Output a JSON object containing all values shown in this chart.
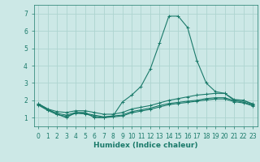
{
  "xlabel": "Humidex (Indice chaleur)",
  "ylabel": "",
  "background_color": "#cce8e6",
  "grid_color": "#aed4d0",
  "line_color": "#1a7a6a",
  "xlim": [
    -0.5,
    23.5
  ],
  "ylim": [
    0.5,
    7.5
  ],
  "yticks": [
    1,
    2,
    3,
    4,
    5,
    6,
    7
  ],
  "xticks": [
    0,
    1,
    2,
    3,
    4,
    5,
    6,
    7,
    8,
    9,
    10,
    11,
    12,
    13,
    14,
    15,
    16,
    17,
    18,
    19,
    20,
    21,
    22,
    23
  ],
  "lines": [
    {
      "x": [
        0,
        1,
        2,
        3,
        4,
        5,
        6,
        7,
        8,
        9,
        10,
        11,
        12,
        13,
        14,
        15,
        16,
        17,
        18,
        19,
        20,
        21,
        22,
        23
      ],
      "y": [
        1.8,
        1.5,
        1.2,
        1.0,
        1.3,
        1.3,
        1.0,
        1.0,
        1.1,
        1.9,
        2.3,
        2.8,
        3.8,
        5.3,
        6.85,
        6.85,
        6.2,
        4.3,
        3.0,
        2.5,
        2.4,
        2.0,
        2.0,
        1.75
      ]
    },
    {
      "x": [
        0,
        1,
        2,
        3,
        4,
        5,
        6,
        7,
        8,
        9,
        10,
        11,
        12,
        13,
        14,
        15,
        16,
        17,
        18,
        19,
        20,
        21,
        22,
        23
      ],
      "y": [
        1.8,
        1.5,
        1.35,
        1.3,
        1.4,
        1.4,
        1.3,
        1.2,
        1.2,
        1.3,
        1.5,
        1.6,
        1.7,
        1.85,
        2.0,
        2.1,
        2.2,
        2.3,
        2.35,
        2.4,
        2.4,
        2.05,
        2.0,
        1.8
      ]
    },
    {
      "x": [
        0,
        1,
        2,
        3,
        4,
        5,
        6,
        7,
        8,
        9,
        10,
        11,
        12,
        13,
        14,
        15,
        16,
        17,
        18,
        19,
        20,
        21,
        22,
        23
      ],
      "y": [
        1.75,
        1.45,
        1.25,
        1.15,
        1.3,
        1.25,
        1.15,
        1.05,
        1.1,
        1.15,
        1.35,
        1.45,
        1.55,
        1.7,
        1.82,
        1.88,
        1.95,
        2.0,
        2.1,
        2.15,
        2.15,
        1.98,
        1.9,
        1.72
      ]
    },
    {
      "x": [
        0,
        1,
        2,
        3,
        4,
        5,
        6,
        7,
        8,
        9,
        10,
        11,
        12,
        13,
        14,
        15,
        16,
        17,
        18,
        19,
        20,
        21,
        22,
        23
      ],
      "y": [
        1.72,
        1.42,
        1.18,
        1.08,
        1.25,
        1.22,
        1.08,
        1.0,
        1.05,
        1.1,
        1.28,
        1.38,
        1.48,
        1.62,
        1.75,
        1.82,
        1.88,
        1.95,
        2.02,
        2.08,
        2.08,
        1.92,
        1.85,
        1.68
      ]
    }
  ]
}
